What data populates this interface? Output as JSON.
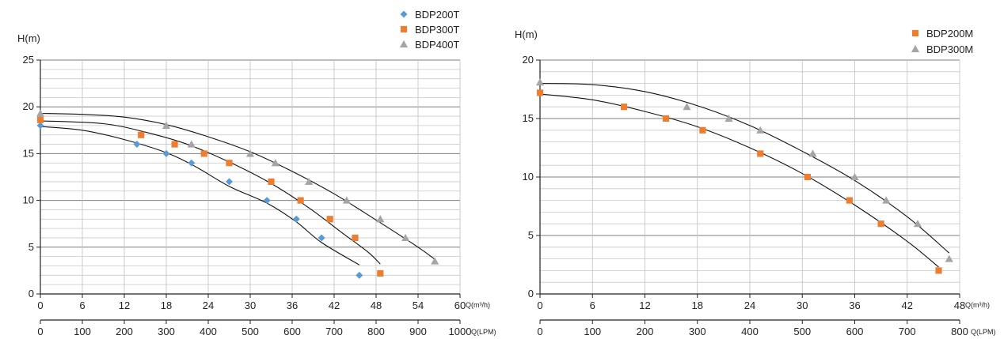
{
  "chart_data": [
    {
      "type": "scatter",
      "ylabel": "H(m)",
      "xlabel": "Q(m³/h)",
      "x2label": "Q(LPM)",
      "xlim": [
        0,
        60
      ],
      "ylim": [
        0,
        25
      ],
      "x2lim": [
        0,
        1000
      ],
      "x_ticks": [
        "0",
        "6",
        "12",
        "18",
        "24",
        "30",
        "36",
        "42",
        "48",
        "54",
        "60"
      ],
      "y_ticks": [
        "0",
        "5",
        "10",
        "15",
        "20",
        "25"
      ],
      "x2_ticks": [
        "0",
        "100",
        "200",
        "300",
        "400",
        "500",
        "600",
        "700",
        "800",
        "900",
        "1000"
      ],
      "grid": true,
      "legend": "top-right",
      "series": [
        {
          "name": "BDP200T",
          "marker": "diamond",
          "color": "#5B9BD5",
          "points": [
            [
              0,
              18
            ],
            [
              13.8,
              16
            ],
            [
              18,
              15
            ],
            [
              21.6,
              14
            ],
            [
              27,
              12
            ],
            [
              32.4,
              10
            ],
            [
              36.6,
              8
            ],
            [
              40.2,
              6
            ],
            [
              45.6,
              2
            ]
          ],
          "curve": [
            [
              0,
              17.9
            ],
            [
              6,
              17.5
            ],
            [
              12,
              16.5
            ],
            [
              18,
              15.1
            ],
            [
              22.2,
              13.6
            ],
            [
              27,
              11.5
            ],
            [
              32.4,
              9.7
            ],
            [
              36.6,
              7.7
            ],
            [
              40.2,
              5.5
            ],
            [
              45.6,
              3.1
            ]
          ]
        },
        {
          "name": "BDP300T",
          "marker": "square",
          "color": "#ED7D31",
          "points": [
            [
              0,
              18.6
            ],
            [
              14.4,
              17
            ],
            [
              19.2,
              16
            ],
            [
              23.4,
              15
            ],
            [
              27,
              14
            ],
            [
              33,
              12
            ],
            [
              37.2,
              10
            ],
            [
              41.4,
              8
            ],
            [
              45,
              6
            ],
            [
              48.6,
              2.2
            ]
          ],
          "curve": [
            [
              0,
              18.5
            ],
            [
              9,
              18.2
            ],
            [
              15,
              17.3
            ],
            [
              21,
              16
            ],
            [
              27,
              14.1
            ],
            [
              33,
              11.8
            ],
            [
              38.4,
              9.2
            ],
            [
              43.2,
              6.5
            ],
            [
              46.8,
              4.5
            ],
            [
              48.6,
              3.2
            ]
          ]
        },
        {
          "name": "BDP400T",
          "marker": "triangle",
          "color": "#A5A5A5",
          "points": [
            [
              0,
              19.3
            ],
            [
              18,
              18
            ],
            [
              21.6,
              16
            ],
            [
              30,
              15
            ],
            [
              33.6,
              14
            ],
            [
              38.4,
              12
            ],
            [
              43.8,
              10
            ],
            [
              48.6,
              8
            ],
            [
              52.2,
              6
            ],
            [
              56.4,
              3.5
            ]
          ],
          "curve": [
            [
              0,
              19.3
            ],
            [
              6,
              19.2
            ],
            [
              12,
              18.9
            ],
            [
              18,
              18.1
            ],
            [
              24,
              16.8
            ],
            [
              30,
              15.2
            ],
            [
              36,
              13.1
            ],
            [
              42,
              10.7
            ],
            [
              48,
              7.9
            ],
            [
              54,
              5
            ],
            [
              56.4,
              3.7
            ]
          ]
        }
      ]
    },
    {
      "type": "scatter",
      "ylabel": "H(m)",
      "xlabel": "Q(m³/h)",
      "x2label": "Q(LPM)",
      "xlim": [
        0,
        48
      ],
      "ylim": [
        0,
        20
      ],
      "x2lim": [
        0,
        800
      ],
      "x_ticks": [
        "0",
        "6",
        "12",
        "18",
        "24",
        "30",
        "36",
        "42",
        "48"
      ],
      "y_ticks": [
        "0",
        "5",
        "10",
        "15",
        "20"
      ],
      "x2_ticks": [
        "0",
        "100",
        "200",
        "300",
        "400",
        "500",
        "600",
        "700",
        "800"
      ],
      "grid": true,
      "legend": "top-right",
      "series": [
        {
          "name": "BDP200M",
          "marker": "square",
          "color": "#ED7D31",
          "points": [
            [
              0,
              17.2
            ],
            [
              9.6,
              16
            ],
            [
              14.4,
              15
            ],
            [
              18.6,
              14
            ],
            [
              25.2,
              12
            ],
            [
              30.6,
              10
            ],
            [
              35.4,
              8
            ],
            [
              39,
              6
            ],
            [
              45.6,
              2
            ]
          ],
          "curve": [
            [
              0,
              17.1
            ],
            [
              6,
              16.6
            ],
            [
              12,
              15.6
            ],
            [
              18,
              14.3
            ],
            [
              24,
              12.5
            ],
            [
              30,
              10.3
            ],
            [
              36,
              7.6
            ],
            [
              42,
              4.5
            ],
            [
              45.6,
              2.3
            ]
          ]
        },
        {
          "name": "BDP300M",
          "marker": "triangle",
          "color": "#A5A5A5",
          "points": [
            [
              0,
              18.1
            ],
            [
              16.8,
              16
            ],
            [
              21.6,
              15
            ],
            [
              25.2,
              14
            ],
            [
              31.2,
              12
            ],
            [
              36,
              10
            ],
            [
              39.6,
              8
            ],
            [
              43.2,
              6
            ],
            [
              46.8,
              3
            ]
          ],
          "curve": [
            [
              0,
              18
            ],
            [
              6,
              17.9
            ],
            [
              12,
              17.3
            ],
            [
              18,
              16.1
            ],
            [
              24,
              14.4
            ],
            [
              30,
              12.2
            ],
            [
              36,
              9.7
            ],
            [
              42,
              6.6
            ],
            [
              46.8,
              3.5
            ]
          ]
        }
      ]
    }
  ]
}
